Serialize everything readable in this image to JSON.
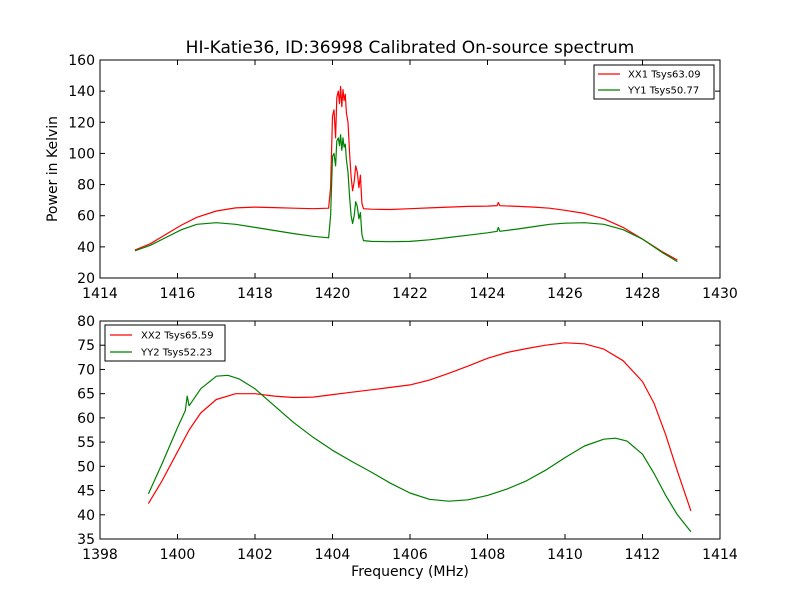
{
  "figure": {
    "title": "HI-Katie36, ID:36998 Calibrated On-source spectrum",
    "ylabel": "Power in Kelvin",
    "xlabel": "Frequency (MHz)"
  },
  "colors": {
    "xx": "#ff0000",
    "yy": "#008000",
    "axes": "#000000",
    "background": "#ffffff"
  },
  "chart_data": [
    {
      "type": "line",
      "title": "HI-Katie36, ID:36998 Calibrated On-source spectrum",
      "xlabel": "",
      "ylabel": "Power in Kelvin",
      "xlim": [
        1414,
        1430
      ],
      "ylim": [
        20,
        160
      ],
      "x_ticks": [
        "1414",
        "1416",
        "1418",
        "1420",
        "1422",
        "1424",
        "1426",
        "1428",
        "1430"
      ],
      "y_ticks": [
        "20",
        "40",
        "60",
        "80",
        "100",
        "120",
        "140",
        "160"
      ],
      "legend_position": "top-right",
      "grid": false,
      "series": [
        {
          "name": "XX1 Tsys63.09",
          "color": "#ff0000",
          "points": [
            [
              1414.9,
              38
            ],
            [
              1415.3,
              42
            ],
            [
              1415.7,
              48
            ],
            [
              1416.1,
              54
            ],
            [
              1416.5,
              59
            ],
            [
              1417.0,
              63
            ],
            [
              1417.5,
              65
            ],
            [
              1418.0,
              65.5
            ],
            [
              1418.5,
              65.2
            ],
            [
              1419.0,
              64.8
            ],
            [
              1419.5,
              64.5
            ],
            [
              1419.9,
              64.8
            ],
            [
              1419.95,
              78
            ],
            [
              1420.0,
              124
            ],
            [
              1420.04,
              128
            ],
            [
              1420.08,
              110
            ],
            [
              1420.11,
              136
            ],
            [
              1420.15,
              140
            ],
            [
              1420.18,
              132
            ],
            [
              1420.21,
              143
            ],
            [
              1420.24,
              130
            ],
            [
              1420.27,
              141
            ],
            [
              1420.3,
              134
            ],
            [
              1420.33,
              138
            ],
            [
              1420.36,
              126
            ],
            [
              1420.4,
              120
            ],
            [
              1420.44,
              100
            ],
            [
              1420.48,
              85
            ],
            [
              1420.52,
              76
            ],
            [
              1420.56,
              82
            ],
            [
              1420.6,
              92
            ],
            [
              1420.64,
              88
            ],
            [
              1420.68,
              78
            ],
            [
              1420.72,
              86
            ],
            [
              1420.76,
              68
            ],
            [
              1420.8,
              64.5
            ],
            [
              1421.0,
              64.2
            ],
            [
              1421.5,
              64
            ],
            [
              1422.0,
              64.5
            ],
            [
              1422.5,
              65
            ],
            [
              1423.0,
              65.5
            ],
            [
              1423.5,
              66
            ],
            [
              1424.0,
              66.2
            ],
            [
              1424.25,
              66.5
            ],
            [
              1424.28,
              68.5
            ],
            [
              1424.32,
              66.4
            ],
            [
              1424.8,
              66
            ],
            [
              1425.2,
              65.5
            ],
            [
              1425.6,
              64.8
            ],
            [
              1426.0,
              63.5
            ],
            [
              1426.5,
              61.5
            ],
            [
              1427.0,
              58
            ],
            [
              1427.5,
              52.5
            ],
            [
              1428.0,
              45
            ],
            [
              1428.5,
              37
            ],
            [
              1428.9,
              31.5
            ]
          ]
        },
        {
          "name": "YY1 Tsys50.77",
          "color": "#008000",
          "points": [
            [
              1414.9,
              37.5
            ],
            [
              1415.3,
              41
            ],
            [
              1415.7,
              46
            ],
            [
              1416.1,
              51
            ],
            [
              1416.5,
              54.5
            ],
            [
              1417.0,
              55.5
            ],
            [
              1417.5,
              54.5
            ],
            [
              1418.0,
              52.5
            ],
            [
              1418.5,
              50.5
            ],
            [
              1419.0,
              48.5
            ],
            [
              1419.5,
              46.8
            ],
            [
              1419.9,
              45.8
            ],
            [
              1419.95,
              60
            ],
            [
              1420.0,
              98
            ],
            [
              1420.04,
              100
            ],
            [
              1420.08,
              92
            ],
            [
              1420.11,
              108
            ],
            [
              1420.15,
              110
            ],
            [
              1420.18,
              105
            ],
            [
              1420.21,
              112
            ],
            [
              1420.24,
              102
            ],
            [
              1420.27,
              110
            ],
            [
              1420.3,
              104
            ],
            [
              1420.33,
              106
            ],
            [
              1420.36,
              96
            ],
            [
              1420.4,
              88
            ],
            [
              1420.44,
              72
            ],
            [
              1420.48,
              60
            ],
            [
              1420.52,
              55
            ],
            [
              1420.56,
              60
            ],
            [
              1420.6,
              69
            ],
            [
              1420.64,
              66
            ],
            [
              1420.68,
              58
            ],
            [
              1420.72,
              62
            ],
            [
              1420.76,
              48
            ],
            [
              1420.8,
              44
            ],
            [
              1421.0,
              43.5
            ],
            [
              1421.5,
              43.3
            ],
            [
              1422.0,
              43.5
            ],
            [
              1422.5,
              44.5
            ],
            [
              1423.0,
              46
            ],
            [
              1423.5,
              47.5
            ],
            [
              1424.0,
              49
            ],
            [
              1424.25,
              50
            ],
            [
              1424.28,
              52.5
            ],
            [
              1424.32,
              50
            ],
            [
              1424.8,
              51.5
            ],
            [
              1425.2,
              53
            ],
            [
              1425.6,
              54.5
            ],
            [
              1426.0,
              55.2
            ],
            [
              1426.5,
              55.5
            ],
            [
              1427.0,
              54.5
            ],
            [
              1427.5,
              51
            ],
            [
              1428.0,
              45
            ],
            [
              1428.5,
              36.5
            ],
            [
              1428.9,
              30.5
            ]
          ]
        }
      ]
    },
    {
      "type": "line",
      "title": "",
      "xlabel": "Frequency (MHz)",
      "ylabel": "",
      "xlim": [
        1398,
        1414
      ],
      "ylim": [
        35,
        80
      ],
      "x_ticks": [
        "1398",
        "1400",
        "1402",
        "1404",
        "1406",
        "1408",
        "1410",
        "1412",
        "1414"
      ],
      "y_ticks": [
        "35",
        "40",
        "45",
        "50",
        "55",
        "60",
        "65",
        "70",
        "75",
        "80"
      ],
      "legend_position": "top-left",
      "grid": false,
      "series": [
        {
          "name": "XX2 Tsys65.59",
          "color": "#ff0000",
          "points": [
            [
              1399.25,
              42.3
            ],
            [
              1399.6,
              47
            ],
            [
              1400.0,
              53
            ],
            [
              1400.3,
              57.5
            ],
            [
              1400.6,
              61
            ],
            [
              1401.0,
              63.8
            ],
            [
              1401.5,
              65
            ],
            [
              1402.0,
              65
            ],
            [
              1402.5,
              64.5
            ],
            [
              1403.0,
              64.2
            ],
            [
              1403.5,
              64.3
            ],
            [
              1404.0,
              64.8
            ],
            [
              1404.5,
              65.3
            ],
            [
              1405.0,
              65.8
            ],
            [
              1405.5,
              66.3
            ],
            [
              1406.0,
              66.8
            ],
            [
              1406.5,
              67.8
            ],
            [
              1407.0,
              69.2
            ],
            [
              1407.5,
              70.7
            ],
            [
              1408.0,
              72.3
            ],
            [
              1408.5,
              73.5
            ],
            [
              1409.0,
              74.3
            ],
            [
              1409.5,
              75
            ],
            [
              1410.0,
              75.5
            ],
            [
              1410.5,
              75.3
            ],
            [
              1411.0,
              74.2
            ],
            [
              1411.5,
              71.8
            ],
            [
              1412.0,
              67.5
            ],
            [
              1412.3,
              63
            ],
            [
              1412.6,
              56.5
            ],
            [
              1412.9,
              49
            ],
            [
              1413.25,
              40.8
            ]
          ]
        },
        {
          "name": "YY2 Tsys52.23",
          "color": "#008000",
          "points": [
            [
              1399.25,
              44.3
            ],
            [
              1399.6,
              50.5
            ],
            [
              1400.0,
              58
            ],
            [
              1400.2,
              61.5
            ],
            [
              1400.25,
              64.5
            ],
            [
              1400.3,
              62.5
            ],
            [
              1400.6,
              66
            ],
            [
              1401.0,
              68.6
            ],
            [
              1401.3,
              68.8
            ],
            [
              1401.6,
              68
            ],
            [
              1402.0,
              66
            ],
            [
              1402.5,
              62.5
            ],
            [
              1403.0,
              59
            ],
            [
              1403.5,
              56
            ],
            [
              1404.0,
              53.3
            ],
            [
              1404.5,
              51
            ],
            [
              1405.0,
              48.8
            ],
            [
              1405.5,
              46.5
            ],
            [
              1406.0,
              44.5
            ],
            [
              1406.5,
              43.2
            ],
            [
              1407.0,
              42.8
            ],
            [
              1407.5,
              43.1
            ],
            [
              1408.0,
              44
            ],
            [
              1408.5,
              45.3
            ],
            [
              1409.0,
              47
            ],
            [
              1409.5,
              49.2
            ],
            [
              1410.0,
              51.8
            ],
            [
              1410.5,
              54.2
            ],
            [
              1411.0,
              55.6
            ],
            [
              1411.3,
              55.8
            ],
            [
              1411.6,
              55.2
            ],
            [
              1412.0,
              52.5
            ],
            [
              1412.3,
              48.5
            ],
            [
              1412.6,
              44
            ],
            [
              1412.9,
              40
            ],
            [
              1413.25,
              36.5
            ]
          ]
        }
      ]
    }
  ]
}
